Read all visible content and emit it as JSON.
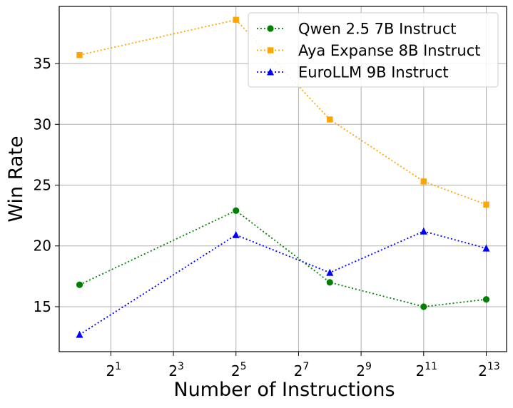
{
  "chart_data": {
    "type": "line",
    "xlabel": "Number of Instructions",
    "ylabel": "Win Rate",
    "x_scale": "log2",
    "x": [
      1,
      32,
      256,
      2048,
      8192
    ],
    "xlim_log2": [
      -0.65,
      13.65
    ],
    "x_ticks": [
      {
        "base": "2",
        "exp": "1",
        "log2": 1
      },
      {
        "base": "2",
        "exp": "3",
        "log2": 3
      },
      {
        "base": "2",
        "exp": "5",
        "log2": 5
      },
      {
        "base": "2",
        "exp": "7",
        "log2": 7
      },
      {
        "base": "2",
        "exp": "9",
        "log2": 9
      },
      {
        "base": "2",
        "exp": "11",
        "log2": 11
      },
      {
        "base": "2",
        "exp": "13",
        "log2": 13
      }
    ],
    "ylim": [
      11.3,
      39.7
    ],
    "y_ticks": [
      {
        "value": 15,
        "label": "15"
      },
      {
        "value": 20,
        "label": "20"
      },
      {
        "value": 25,
        "label": "25"
      },
      {
        "value": 30,
        "label": "30"
      },
      {
        "value": 35,
        "label": "35"
      }
    ],
    "grid": true,
    "legend_position": "top-right",
    "series": [
      {
        "name": "Qwen 2.5 7B Instruct",
        "color": "#008000",
        "marker": "circle",
        "line_style": "dotted",
        "values": [
          16.8,
          22.9,
          17.0,
          15.0,
          15.6
        ]
      },
      {
        "name": "Aya Expanse 8B Instruct",
        "color": "#FFA500",
        "marker": "square",
        "line_style": "dotted",
        "values": [
          35.7,
          38.6,
          30.4,
          25.3,
          23.4
        ]
      },
      {
        "name": "EuroLLM 9B Instruct",
        "color": "#0000FF",
        "marker": "triangle",
        "line_style": "dotted",
        "values": [
          12.7,
          20.9,
          17.8,
          21.2,
          19.8
        ]
      }
    ]
  }
}
